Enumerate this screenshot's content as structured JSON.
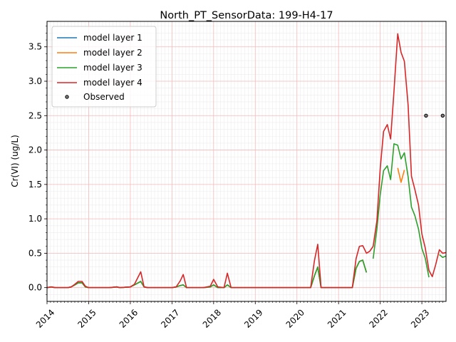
{
  "chart_data": {
    "type": "line",
    "title": "North_PT_SensorData: 199-H4-17",
    "xlabel": "",
    "ylabel": "Cr(VI) (ug/L)",
    "xlim": [
      2014.0,
      2023.58
    ],
    "ylim": [
      -0.2,
      3.87
    ],
    "x_ticks": [
      2014,
      2015,
      2016,
      2017,
      2018,
      2019,
      2020,
      2021,
      2022,
      2023
    ],
    "x_tick_labels": [
      "2014",
      "2015",
      "2016",
      "2017",
      "2018",
      "2019",
      "2020",
      "2021",
      "2022",
      "2023"
    ],
    "y_ticks": [
      0.0,
      0.5,
      1.0,
      1.5,
      2.0,
      2.5,
      3.0,
      3.5
    ],
    "y_tick_labels": [
      "0.0",
      "0.5",
      "1.0",
      "1.5",
      "2.0",
      "2.5",
      "3.0",
      "3.5"
    ],
    "grid": true,
    "legend_position": "top-left",
    "series": [
      {
        "name": "model layer 1",
        "color": "#1f77b4",
        "segments": [
          [
            [
              2014.0,
              0.0
            ],
            [
              2014.1,
              0.01
            ],
            [
              2014.2,
              0.0
            ],
            [
              2014.5,
              0.0
            ],
            [
              2014.58,
              0.01
            ],
            [
              2014.67,
              0.04
            ],
            [
              2014.75,
              0.07
            ],
            [
              2014.84,
              0.07
            ],
            [
              2014.92,
              0.01
            ],
            [
              2015.0,
              0.0
            ],
            [
              2015.5,
              0.0
            ],
            [
              2015.67,
              0.01
            ],
            [
              2015.75,
              0.0
            ],
            [
              2016.0,
              0.01
            ],
            [
              2016.1,
              0.04
            ],
            [
              2016.25,
              0.09
            ],
            [
              2016.33,
              0.01
            ],
            [
              2016.42,
              0.0
            ],
            [
              2017.0,
              0.0
            ],
            [
              2017.1,
              0.01
            ],
            [
              2017.2,
              0.03
            ],
            [
              2017.27,
              0.04
            ],
            [
              2017.35,
              0.0
            ],
            [
              2017.75,
              0.0
            ],
            [
              2017.92,
              0.01
            ],
            [
              2018.0,
              0.04
            ],
            [
              2018.1,
              0.0
            ],
            [
              2018.25,
              0.0
            ],
            [
              2018.33,
              0.04
            ],
            [
              2018.42,
              0.0
            ],
            [
              2020.33,
              0.0
            ],
            [
              2020.42,
              0.17
            ],
            [
              2020.5,
              0.3
            ],
            [
              2020.58,
              0.0
            ],
            [
              2021.33,
              0.0
            ],
            [
              2021.42,
              0.28
            ],
            [
              2021.5,
              0.38
            ],
            [
              2021.58,
              0.4
            ],
            [
              2021.67,
              0.22
            ]
          ]
        ]
      },
      {
        "name": "model layer 2",
        "color": "#ff7f0e",
        "segments": [
          [
            [
              2014.0,
              0.0
            ],
            [
              2014.1,
              0.01
            ],
            [
              2014.2,
              0.0
            ],
            [
              2014.5,
              0.0
            ],
            [
              2014.58,
              0.01
            ],
            [
              2014.67,
              0.04
            ],
            [
              2014.75,
              0.07
            ],
            [
              2014.84,
              0.07
            ],
            [
              2014.92,
              0.01
            ],
            [
              2015.0,
              0.0
            ],
            [
              2015.5,
              0.0
            ],
            [
              2015.67,
              0.01
            ],
            [
              2015.75,
              0.0
            ],
            [
              2016.0,
              0.01
            ],
            [
              2016.1,
              0.04
            ],
            [
              2016.25,
              0.09
            ],
            [
              2016.33,
              0.01
            ],
            [
              2016.42,
              0.0
            ],
            [
              2017.0,
              0.0
            ],
            [
              2017.1,
              0.01
            ],
            [
              2017.2,
              0.03
            ],
            [
              2017.27,
              0.04
            ],
            [
              2017.35,
              0.0
            ],
            [
              2017.75,
              0.0
            ],
            [
              2017.92,
              0.01
            ],
            [
              2018.0,
              0.04
            ],
            [
              2018.1,
              0.0
            ],
            [
              2018.25,
              0.0
            ],
            [
              2018.33,
              0.04
            ],
            [
              2018.42,
              0.0
            ],
            [
              2020.33,
              0.0
            ],
            [
              2020.42,
              0.17
            ],
            [
              2020.5,
              0.3
            ],
            [
              2020.58,
              0.0
            ],
            [
              2021.33,
              0.0
            ],
            [
              2021.42,
              0.28
            ],
            [
              2021.5,
              0.38
            ],
            [
              2021.58,
              0.4
            ],
            [
              2021.67,
              0.22
            ]
          ],
          [
            [
              2022.42,
              1.74
            ],
            [
              2022.5,
              1.53
            ],
            [
              2022.58,
              1.71
            ]
          ]
        ]
      },
      {
        "name": "model layer 3",
        "color": "#2ca02c",
        "segments": [
          [
            [
              2014.0,
              0.0
            ],
            [
              2014.1,
              0.01
            ],
            [
              2014.2,
              0.0
            ],
            [
              2014.5,
              0.0
            ],
            [
              2014.58,
              0.01
            ],
            [
              2014.67,
              0.04
            ],
            [
              2014.75,
              0.07
            ],
            [
              2014.84,
              0.07
            ],
            [
              2014.92,
              0.01
            ],
            [
              2015.0,
              0.0
            ],
            [
              2015.5,
              0.0
            ],
            [
              2015.67,
              0.01
            ],
            [
              2015.75,
              0.0
            ],
            [
              2016.0,
              0.01
            ],
            [
              2016.1,
              0.04
            ],
            [
              2016.25,
              0.09
            ],
            [
              2016.33,
              0.01
            ],
            [
              2016.42,
              0.0
            ],
            [
              2017.0,
              0.0
            ],
            [
              2017.1,
              0.01
            ],
            [
              2017.2,
              0.03
            ],
            [
              2017.27,
              0.04
            ],
            [
              2017.35,
              0.0
            ],
            [
              2017.75,
              0.0
            ],
            [
              2017.92,
              0.01
            ],
            [
              2018.0,
              0.04
            ],
            [
              2018.1,
              0.0
            ],
            [
              2018.25,
              0.0
            ],
            [
              2018.33,
              0.04
            ],
            [
              2018.42,
              0.0
            ],
            [
              2020.33,
              0.0
            ],
            [
              2020.42,
              0.17
            ],
            [
              2020.5,
              0.3
            ],
            [
              2020.58,
              0.0
            ],
            [
              2021.33,
              0.0
            ],
            [
              2021.42,
              0.28
            ],
            [
              2021.5,
              0.38
            ],
            [
              2021.58,
              0.4
            ],
            [
              2021.67,
              0.22
            ]
          ],
          [
            [
              2021.83,
              0.42
            ],
            [
              2021.92,
              0.85
            ],
            [
              2022.0,
              1.35
            ],
            [
              2022.08,
              1.7
            ],
            [
              2022.17,
              1.77
            ],
            [
              2022.25,
              1.57
            ],
            [
              2022.33,
              2.09
            ],
            [
              2022.42,
              2.07
            ],
            [
              2022.5,
              1.87
            ],
            [
              2022.58,
              1.96
            ],
            [
              2022.67,
              1.61
            ],
            [
              2022.75,
              1.17
            ],
            [
              2022.83,
              1.05
            ],
            [
              2022.92,
              0.85
            ],
            [
              2023.0,
              0.57
            ],
            [
              2023.08,
              0.43
            ],
            [
              2023.17,
              0.15
            ]
          ],
          [
            [
              2023.42,
              0.48
            ],
            [
              2023.5,
              0.44
            ],
            [
              2023.58,
              0.46
            ]
          ]
        ]
      },
      {
        "name": "model layer 4",
        "color": "#d62728",
        "segments": [
          [
            [
              2014.0,
              0.0
            ],
            [
              2014.1,
              0.01
            ],
            [
              2014.2,
              0.0
            ],
            [
              2014.5,
              0.0
            ],
            [
              2014.58,
              0.01
            ],
            [
              2014.67,
              0.05
            ],
            [
              2014.75,
              0.09
            ],
            [
              2014.84,
              0.09
            ],
            [
              2014.92,
              0.02
            ],
            [
              2015.0,
              0.0
            ],
            [
              2015.5,
              0.0
            ],
            [
              2015.67,
              0.01
            ],
            [
              2015.75,
              0.0
            ],
            [
              2016.0,
              0.01
            ],
            [
              2016.1,
              0.05
            ],
            [
              2016.25,
              0.23
            ],
            [
              2016.33,
              0.01
            ],
            [
              2016.42,
              0.0
            ],
            [
              2017.0,
              0.0
            ],
            [
              2017.1,
              0.01
            ],
            [
              2017.2,
              0.1
            ],
            [
              2017.27,
              0.19
            ],
            [
              2017.35,
              0.0
            ],
            [
              2017.75,
              0.0
            ],
            [
              2017.92,
              0.02
            ],
            [
              2018.0,
              0.12
            ],
            [
              2018.1,
              0.01
            ],
            [
              2018.25,
              0.0
            ],
            [
              2018.33,
              0.21
            ],
            [
              2018.42,
              0.0
            ],
            [
              2020.33,
              0.0
            ],
            [
              2020.42,
              0.39
            ],
            [
              2020.5,
              0.63
            ],
            [
              2020.58,
              0.0
            ],
            [
              2021.33,
              0.0
            ],
            [
              2021.42,
              0.42
            ],
            [
              2021.5,
              0.6
            ],
            [
              2021.58,
              0.61
            ],
            [
              2021.67,
              0.5
            ],
            [
              2021.75,
              0.53
            ],
            [
              2021.83,
              0.6
            ],
            [
              2021.92,
              0.97
            ],
            [
              2022.0,
              1.73
            ],
            [
              2022.08,
              2.27
            ],
            [
              2022.17,
              2.37
            ],
            [
              2022.25,
              2.16
            ],
            [
              2022.33,
              2.85
            ],
            [
              2022.42,
              3.69
            ],
            [
              2022.5,
              3.42
            ],
            [
              2022.58,
              3.29
            ],
            [
              2022.67,
              2.65
            ],
            [
              2022.75,
              1.62
            ],
            [
              2022.83,
              1.43
            ],
            [
              2022.92,
              1.2
            ],
            [
              2023.0,
              0.78
            ],
            [
              2023.08,
              0.58
            ],
            [
              2023.17,
              0.25
            ],
            [
              2023.25,
              0.16
            ],
            [
              2023.33,
              0.33
            ],
            [
              2023.42,
              0.55
            ],
            [
              2023.5,
              0.5
            ],
            [
              2023.58,
              0.51
            ]
          ]
        ]
      }
    ],
    "observed": {
      "name": "Observed",
      "color": "#000000",
      "points": [
        [
          2023.1,
          2.5
        ],
        [
          2023.5,
          2.5
        ]
      ]
    }
  }
}
